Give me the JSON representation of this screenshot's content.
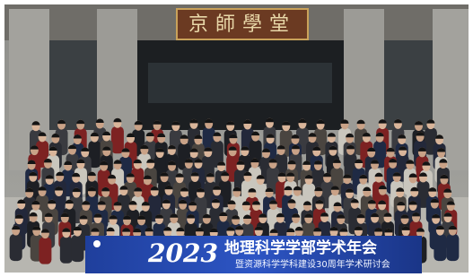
{
  "sign": {
    "text": "京師學堂"
  },
  "banner": {
    "year": "2023",
    "title": "地理科学学部学术年会",
    "subtitle": "暨资源科学学科建设30周年学术研讨会"
  }
}
